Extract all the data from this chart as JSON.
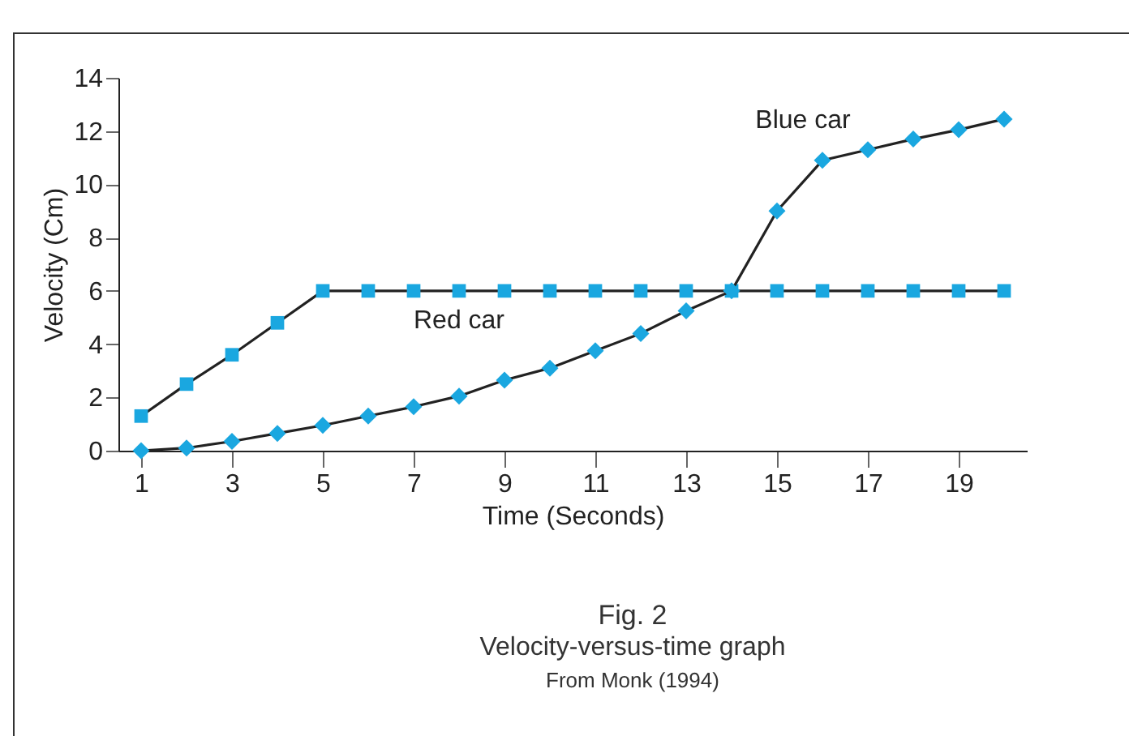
{
  "chart_data": {
    "type": "line",
    "xlabel": "Time (Seconds)",
    "ylabel": "Velocity (Cm)",
    "x": [
      1,
      2,
      3,
      4,
      5,
      6,
      7,
      8,
      9,
      10,
      11,
      12,
      13,
      14,
      15,
      16,
      17,
      18,
      19,
      20
    ],
    "series": [
      {
        "name": "Red car",
        "color": "#1aa7e0",
        "marker": "square",
        "values": [
          1.3,
          2.5,
          3.6,
          4.8,
          6,
          6,
          6,
          6,
          6,
          6,
          6,
          6,
          6,
          6,
          6,
          6,
          6,
          6,
          6,
          6
        ]
      },
      {
        "name": "Blue car",
        "color": "#1aa7e0",
        "marker": "diamond",
        "values": [
          0,
          0.1,
          0.35,
          0.65,
          0.95,
          1.3,
          1.65,
          2.05,
          2.65,
          3.1,
          3.75,
          4.4,
          5.25,
          6,
          9,
          10.9,
          11.3,
          11.7,
          12.05,
          12.45
        ]
      }
    ],
    "xlim": [
      0.5,
      20.5
    ],
    "xticks": [
      1,
      3,
      5,
      7,
      9,
      11,
      13,
      15,
      17,
      19
    ],
    "ylim": [
      0,
      14
    ],
    "yticks": [
      0,
      2,
      4,
      6,
      8,
      10,
      12,
      14
    ],
    "grid": false,
    "line_style": "solid",
    "annotations": [
      "Fig. 2",
      "Velocity-versus-time graph",
      "From Monk (1994)"
    ]
  }
}
